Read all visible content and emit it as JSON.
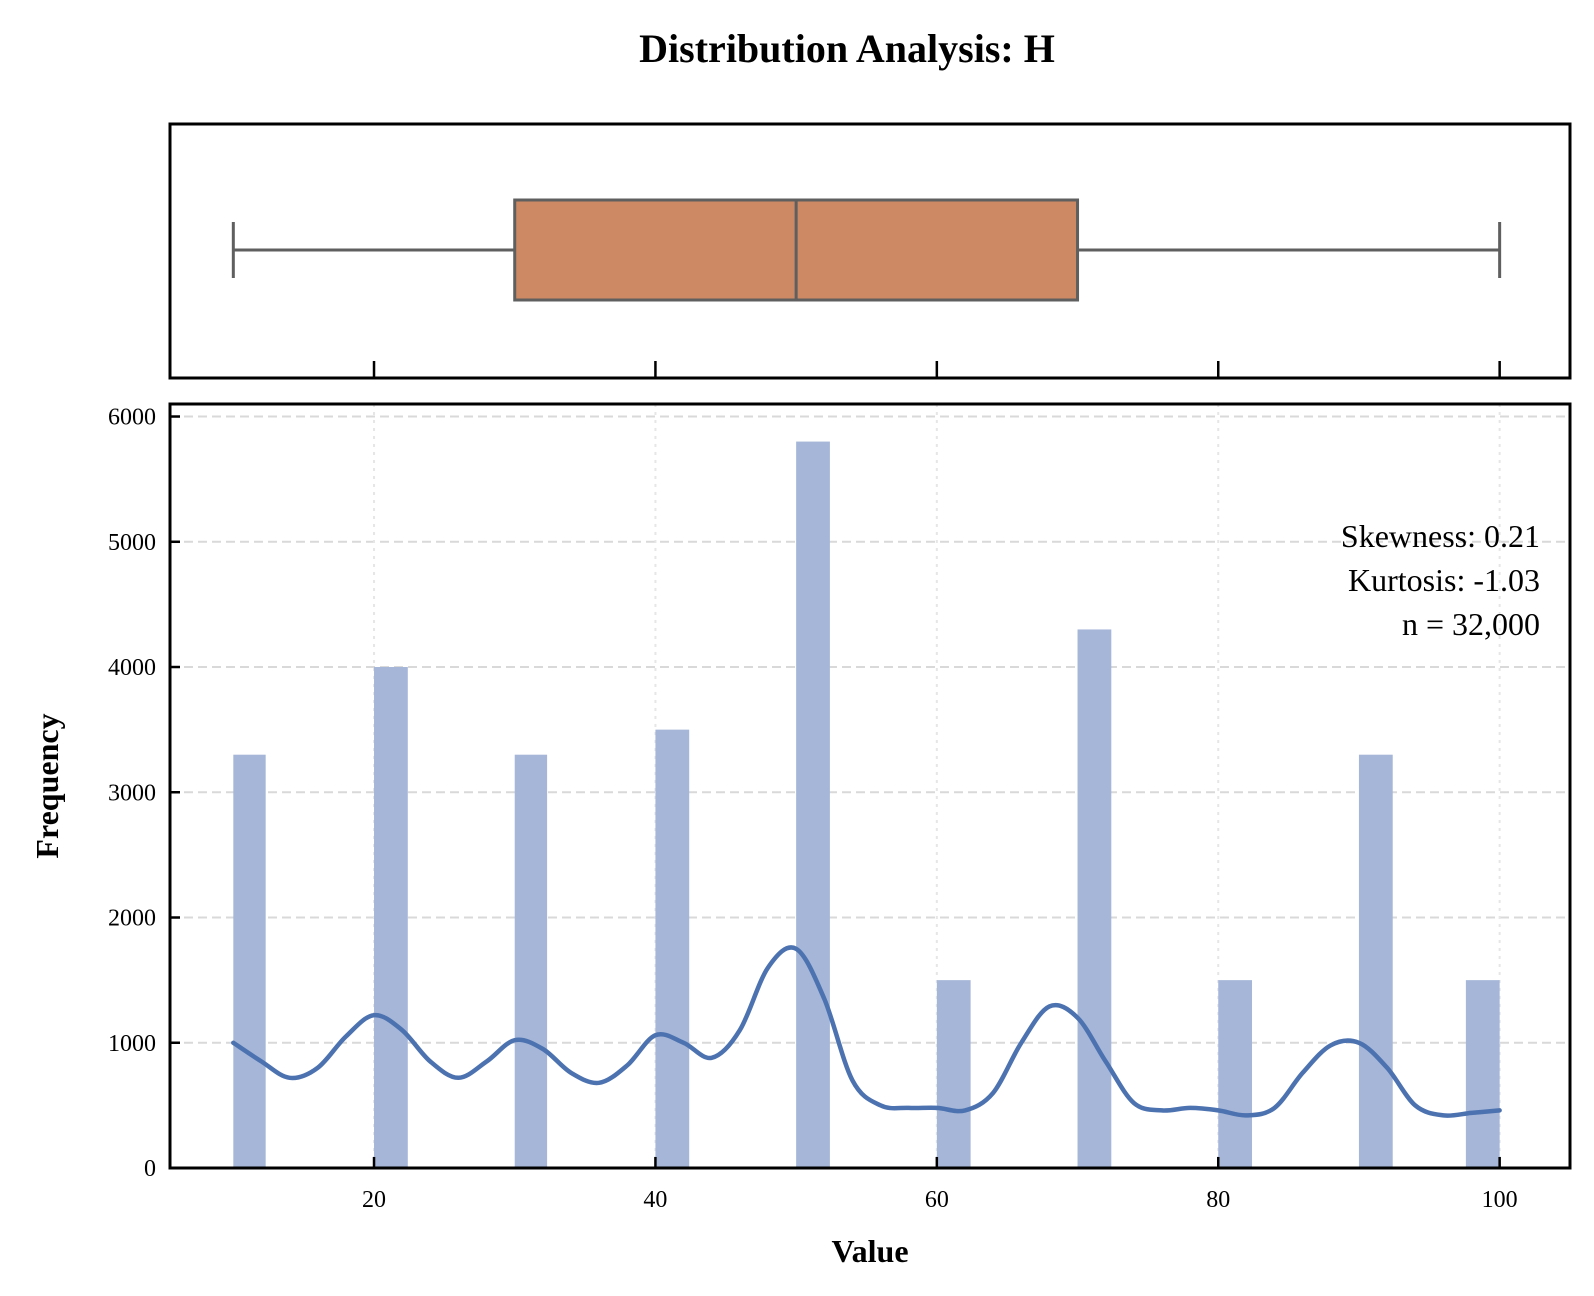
{
  "chart_data": [
    {
      "type": "box",
      "box_color": "#cc8963",
      "line_color": "#5f5f5f",
      "min": 10,
      "q1": 30,
      "median": 50,
      "q3": 70,
      "max": 100,
      "xlim": [
        5.5,
        105
      ]
    },
    {
      "type": "bar",
      "title": "Distribution Analysis: H",
      "xlabel": "Value",
      "ylabel": "Frequency",
      "xlim": [
        5.5,
        105
      ],
      "ylim": [
        0,
        6100
      ],
      "x_ticks": [
        "20",
        "40",
        "60",
        "80",
        "100"
      ],
      "y_ticks": [
        "0",
        "1000",
        "2000",
        "3000",
        "4000",
        "5000",
        "6000"
      ],
      "grid": true,
      "bar_color": "#a5b6d8",
      "kde_color": "#4c72b0",
      "bins": [
        {
          "x0": 10.0,
          "x1": 12.3,
          "count": 3300
        },
        {
          "x0": 20.0,
          "x1": 22.4,
          "count": 4000
        },
        {
          "x0": 30.0,
          "x1": 32.3,
          "count": 3300
        },
        {
          "x0": 40.0,
          "x1": 42.4,
          "count": 3500
        },
        {
          "x0": 50.0,
          "x1": 52.4,
          "count": 5800
        },
        {
          "x0": 60.0,
          "x1": 62.4,
          "count": 1500
        },
        {
          "x0": 70.0,
          "x1": 72.4,
          "count": 4300
        },
        {
          "x0": 80.0,
          "x1": 82.4,
          "count": 1500
        },
        {
          "x0": 90.0,
          "x1": 92.4,
          "count": 3300
        },
        {
          "x0": 97.6,
          "x1": 100.0,
          "count": 1500
        }
      ],
      "kde": {
        "x": [
          10,
          12,
          14,
          16,
          18,
          20,
          22,
          24,
          26,
          28,
          30,
          32,
          34,
          36,
          38,
          40,
          42,
          44,
          46,
          48,
          50,
          52,
          54,
          56,
          58,
          60,
          62,
          64,
          66,
          68,
          70,
          72,
          74,
          76,
          78,
          80,
          82,
          84,
          86,
          88,
          90,
          92,
          94,
          96,
          98,
          100
        ],
        "y": [
          1000,
          850,
          720,
          800,
          1050,
          1220,
          1100,
          850,
          720,
          850,
          1020,
          950,
          760,
          680,
          820,
          1060,
          1000,
          880,
          1100,
          1600,
          1750,
          1350,
          700,
          500,
          480,
          480,
          460,
          600,
          1000,
          1290,
          1200,
          850,
          520,
          460,
          480,
          460,
          420,
          480,
          760,
          980,
          1000,
          800,
          500,
          420,
          440,
          460
        ]
      },
      "annotations": [
        "Skewness: 0.21",
        "Kurtosis: -1.03",
        "n = 32,000"
      ]
    }
  ]
}
